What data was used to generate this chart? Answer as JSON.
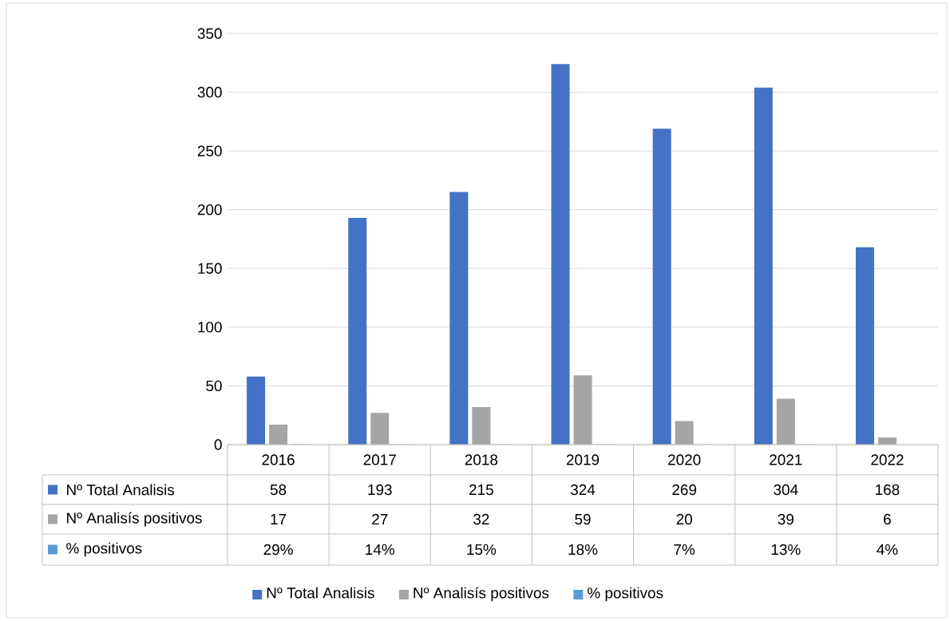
{
  "chart_data": {
    "type": "bar",
    "categories": [
      "2016",
      "2017",
      "2018",
      "2019",
      "2020",
      "2021",
      "2022"
    ],
    "series": [
      {
        "name": "Nº Total Analisis",
        "color": "#4472c4",
        "values": [
          58,
          193,
          215,
          324,
          269,
          304,
          168
        ],
        "value_labels": [
          "58",
          "193",
          "215",
          "324",
          "269",
          "304",
          "168"
        ]
      },
      {
        "name": "Nº Analisís positivos",
        "color": "#a5a5a5",
        "values": [
          17,
          27,
          32,
          59,
          20,
          39,
          6
        ],
        "value_labels": [
          "17",
          "27",
          "32",
          "59",
          "20",
          "39",
          "6"
        ]
      },
      {
        "name": "% positivos",
        "color": "#5b9bd5",
        "values": [
          0.29,
          0.14,
          0.15,
          0.18,
          0.07,
          0.13,
          0.04
        ],
        "value_labels": [
          "29%",
          "14%",
          "15%",
          "18%",
          "7%",
          "13%",
          "4%"
        ]
      }
    ],
    "ylim": [
      0,
      350
    ],
    "yticks": [
      0,
      50,
      100,
      150,
      200,
      250,
      300,
      350
    ],
    "grid": "y",
    "legend": "bottom"
  }
}
